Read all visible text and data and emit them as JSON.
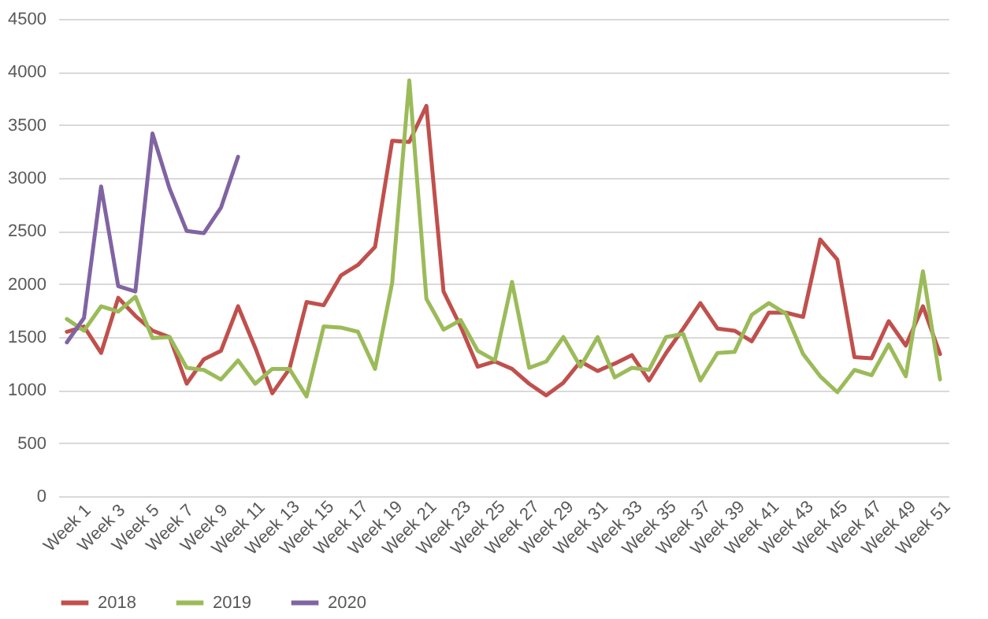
{
  "chart_data": {
    "type": "line",
    "categories": [
      "Week 1",
      null,
      "Week 3",
      null,
      "Week 5",
      null,
      "Week 7",
      null,
      "Week 9",
      null,
      "Week 11",
      null,
      "Week 13",
      null,
      "Week 15",
      null,
      "Week 17",
      null,
      "Week 19",
      null,
      "Week 21",
      null,
      "Week 23",
      null,
      "Week 25",
      null,
      "Week 27",
      null,
      "Week 29",
      null,
      "Week 31",
      null,
      "Week 33",
      null,
      "Week 35",
      null,
      "Week 37",
      null,
      "Week 39",
      null,
      "Week 41",
      null,
      "Week 43",
      null,
      "Week 45",
      null,
      "Week 47",
      null,
      "Week 49",
      null,
      "Week 51",
      null
    ],
    "series": [
      {
        "name": "2018",
        "color": "#c0504d",
        "values": [
          1550,
          1600,
          1350,
          1870,
          1700,
          1560,
          1500,
          1060,
          1290,
          1370,
          1790,
          1400,
          970,
          1200,
          1830,
          1800,
          2080,
          2180,
          2350,
          3350,
          3340,
          3680,
          1930,
          1600,
          1220,
          1270,
          1200,
          1060,
          950,
          1070,
          1270,
          1180,
          1250,
          1330,
          1090,
          1350,
          1580,
          1820,
          1580,
          1560,
          1460,
          1730,
          1730,
          1690,
          2420,
          2230,
          1310,
          1300,
          1650,
          1420,
          1790,
          1340
        ]
      },
      {
        "name": "2019",
        "color": "#9bbb59",
        "values": [
          1670,
          1560,
          1790,
          1740,
          1880,
          1490,
          1500,
          1210,
          1190,
          1100,
          1280,
          1060,
          1200,
          1200,
          940,
          1600,
          1590,
          1550,
          1200,
          2010,
          3920,
          1860,
          1570,
          1660,
          1370,
          1280,
          2020,
          1210,
          1270,
          1500,
          1220,
          1500,
          1120,
          1210,
          1190,
          1500,
          1530,
          1090,
          1350,
          1360,
          1710,
          1820,
          1720,
          1340,
          1130,
          980,
          1190,
          1140,
          1430,
          1130,
          2120,
          1100
        ]
      },
      {
        "name": "2020",
        "color": "#8064a2",
        "values": [
          1450,
          1680,
          2920,
          1980,
          1930,
          3420,
          2900,
          2500,
          2480,
          2720,
          3200,
          null,
          null,
          null,
          null,
          null,
          null,
          null,
          null,
          null,
          null,
          null,
          null,
          null,
          null,
          null,
          null,
          null,
          null,
          null,
          null,
          null,
          null,
          null,
          null,
          null,
          null,
          null,
          null,
          null,
          null,
          null,
          null,
          null,
          null,
          null,
          null,
          null,
          null,
          null,
          null,
          null
        ]
      }
    ],
    "ylim": [
      0,
      4500
    ],
    "yticks": [
      0,
      500,
      1000,
      1500,
      2000,
      2500,
      3000,
      3500,
      4000,
      4500
    ],
    "grid": "y",
    "legend": "bottom",
    "marker": "none",
    "line_style": "solid"
  }
}
